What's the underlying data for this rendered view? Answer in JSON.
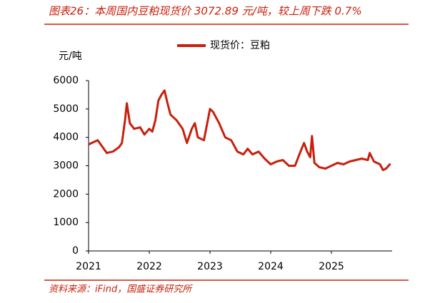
{
  "chart_data": {
    "type": "line",
    "title": "图表26：本周国内豆粕现货价 3072.89 元/吨，较上周下跌 0.7%",
    "y_label": "元/吨",
    "source": "资料来源：iFind，国盛证券研究所",
    "x": [
      2021.0,
      2021.1,
      2021.15,
      2021.25,
      2021.3,
      2021.4,
      2021.5,
      2021.55,
      2021.6,
      2021.63,
      2021.68,
      2021.75,
      2021.85,
      2021.92,
      2022.0,
      2022.05,
      2022.1,
      2022.15,
      2022.2,
      2022.25,
      2022.3,
      2022.35,
      2022.45,
      2022.55,
      2022.62,
      2022.7,
      2022.75,
      2022.8,
      2022.9,
      2023.0,
      2023.05,
      2023.15,
      2023.25,
      2023.35,
      2023.45,
      2023.55,
      2023.62,
      2023.7,
      2023.8,
      2023.9,
      2024.0,
      2024.1,
      2024.2,
      2024.3,
      2024.4,
      2024.5,
      2024.55,
      2024.6,
      2024.65,
      2024.68,
      2024.72,
      2024.8,
      2024.9,
      2025.0,
      2025.1,
      2025.2,
      2025.3,
      2025.4,
      2025.5,
      2025.6,
      2025.63,
      2025.7,
      2025.8,
      2025.85,
      2025.9,
      2025.97
    ],
    "series": [
      {
        "name": "现货价：豆粕",
        "color": "#c8200e",
        "values": [
          3750,
          3850,
          3900,
          3600,
          3450,
          3500,
          3650,
          3800,
          4600,
          5200,
          4500,
          4300,
          4350,
          4100,
          4300,
          4200,
          4600,
          5300,
          5500,
          5650,
          5200,
          4800,
          4600,
          4300,
          3800,
          4300,
          4500,
          4000,
          3900,
          5000,
          4900,
          4500,
          4000,
          3900,
          3500,
          3400,
          3600,
          3400,
          3500,
          3250,
          3050,
          3150,
          3200,
          3000,
          3000,
          3550,
          3800,
          3500,
          3300,
          4050,
          3100,
          2950,
          2900,
          3000,
          3100,
          3050,
          3150,
          3200,
          3250,
          3200,
          3450,
          3150,
          3050,
          2850,
          2900,
          3073
        ]
      }
    ],
    "xlim": [
      2021,
      2026
    ],
    "xticks": [
      2021,
      2022,
      2023,
      2024,
      2025
    ],
    "ylim": [
      0,
      6000
    ],
    "yticks": [
      0,
      1000,
      2000,
      3000,
      4000,
      5000,
      6000
    ],
    "legend": "top"
  }
}
